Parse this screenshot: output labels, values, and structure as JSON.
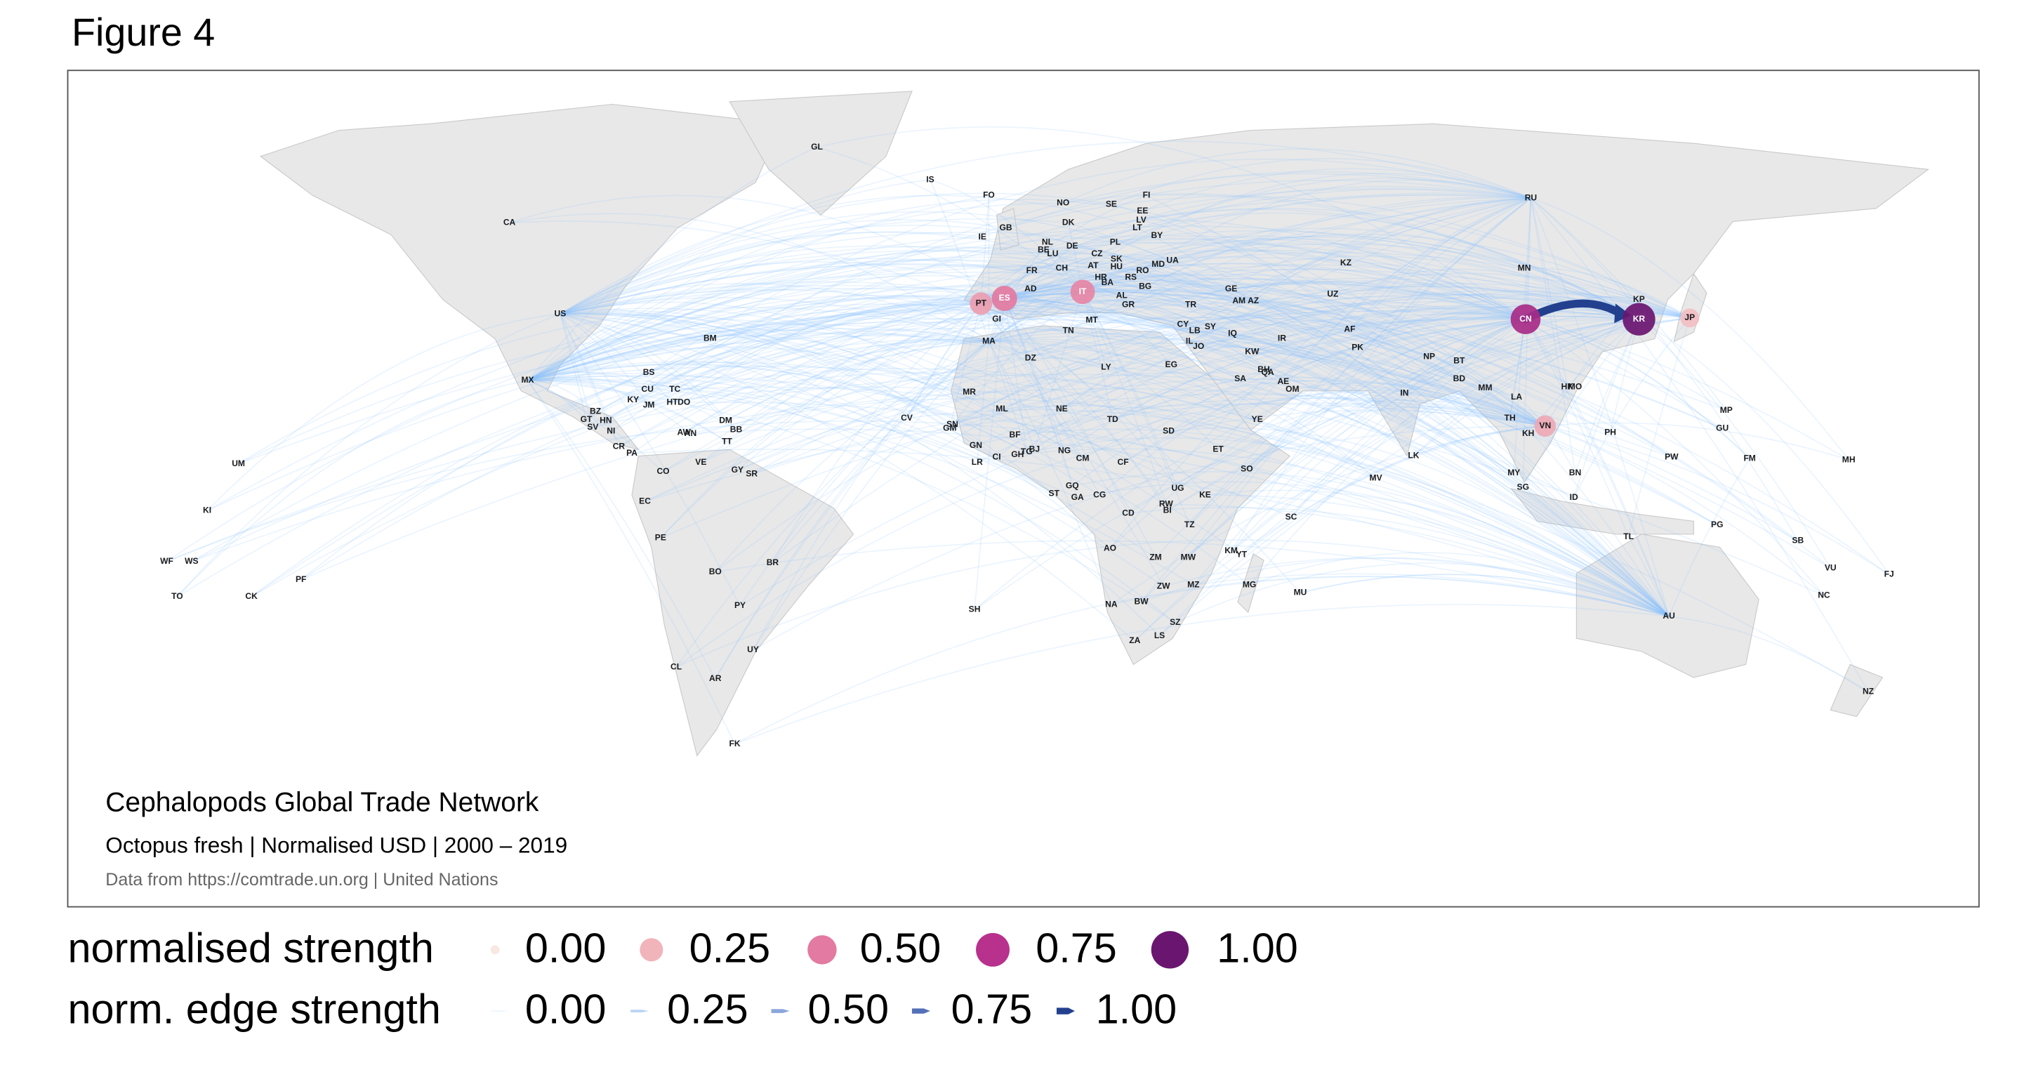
{
  "title": "Figure 4",
  "map": {
    "countries": [
      "GL",
      "IS",
      "FO",
      "NO",
      "SE",
      "FI",
      "EE",
      "LV",
      "LT",
      "BY",
      "DK",
      "GB",
      "IE",
      "NL",
      "BE",
      "LU",
      "DE",
      "PL",
      "CZ",
      "SK",
      "UA",
      "MD",
      "RO",
      "HU",
      "AT",
      "FR",
      "CH",
      "RS",
      "BG",
      "AD",
      "HR",
      "BA",
      "AL",
      "GR",
      "TR",
      "GE",
      "AM",
      "AZ",
      "KZ",
      "UZ",
      "MN",
      "RU",
      "CA",
      "US",
      "MX",
      "BM",
      "BS",
      "CU",
      "KY",
      "JM",
      "TC",
      "HT",
      "DO",
      "BZ",
      "GT",
      "HN",
      "SV",
      "NI",
      "CR",
      "PA",
      "AW",
      "AN",
      "CO",
      "VE",
      "GY",
      "SR",
      "TT",
      "BB",
      "DM",
      "EC",
      "PE",
      "BO",
      "BR",
      "PY",
      "UY",
      "CL",
      "AR",
      "FK",
      "UM",
      "KI",
      "WF",
      "WS",
      "TO",
      "CK",
      "PF",
      "CV",
      "SN",
      "GM",
      "GN",
      "LR",
      "CI",
      "GH",
      "TG",
      "BJ",
      "MR",
      "ML",
      "BF",
      "NE",
      "NG",
      "CM",
      "TD",
      "SD",
      "ET",
      "SO",
      "MA",
      "DZ",
      "TN",
      "LY",
      "EG",
      "GI",
      "MT",
      "CY",
      "LB",
      "SY",
      "IL",
      "JO",
      "IQ",
      "KW",
      "IR",
      "SA",
      "BH",
      "QA",
      "AE",
      "OM",
      "YE",
      "AF",
      "PK",
      "IN",
      "NP",
      "BT",
      "BD",
      "MM",
      "LA",
      "TH",
      "KH",
      "MY",
      "SG",
      "ID",
      "BN",
      "PH",
      "HK",
      "MO",
      "KP",
      "LK",
      "MV",
      "MU",
      "SC",
      "MG",
      "KM",
      "YT",
      "MZ",
      "MW",
      "ZM",
      "ZW",
      "TZ",
      "KE",
      "UG",
      "RW",
      "BI",
      "CD",
      "AO",
      "NA",
      "BW",
      "ZA",
      "LS",
      "SZ",
      "ST",
      "GQ",
      "GA",
      "CG",
      "CF",
      "SH",
      "MP",
      "GU",
      "PW",
      "FM",
      "MH",
      "PG",
      "SB",
      "VU",
      "FJ",
      "NC",
      "TL",
      "AU",
      "NZ"
    ],
    "nodes": [
      {
        "label": "CN",
        "strength": 0.8
      },
      {
        "label": "KR",
        "strength": 1
      },
      {
        "label": "ES",
        "strength": 0.5
      },
      {
        "label": "IT",
        "strength": 0.45
      },
      {
        "label": "PT",
        "strength": 0.35
      },
      {
        "label": "VN",
        "strength": 0.3
      },
      {
        "label": "JP",
        "strength": 0.2
      }
    ],
    "edges": [
      {
        "strength": 1
      }
    ]
  },
  "caption": {
    "title": "Cephalopods Global Trade Network",
    "subtitle": "Octopus fresh | Normalised USD | 2000 – 2019",
    "source": "Data from https://comtrade.un.org | United Nations"
  },
  "legend": {
    "node_title": "normalised strength",
    "node_ticks": [
      {
        "value": 0,
        "label": "0.00"
      },
      {
        "value": 0.25,
        "label": "0.25"
      },
      {
        "value": 0.5,
        "label": "0.50"
      },
      {
        "value": 0.75,
        "label": "0.75"
      },
      {
        "value": 1,
        "label": "1.00"
      }
    ],
    "edge_title": "norm. edge strength",
    "edge_ticks": [
      {
        "value": 0,
        "label": "0.00"
      },
      {
        "value": 0.25,
        "label": "0.25"
      },
      {
        "value": 0.5,
        "label": "0.50"
      },
      {
        "value": 0.75,
        "label": "0.75"
      },
      {
        "value": 1,
        "label": "1.00"
      }
    ]
  }
}
